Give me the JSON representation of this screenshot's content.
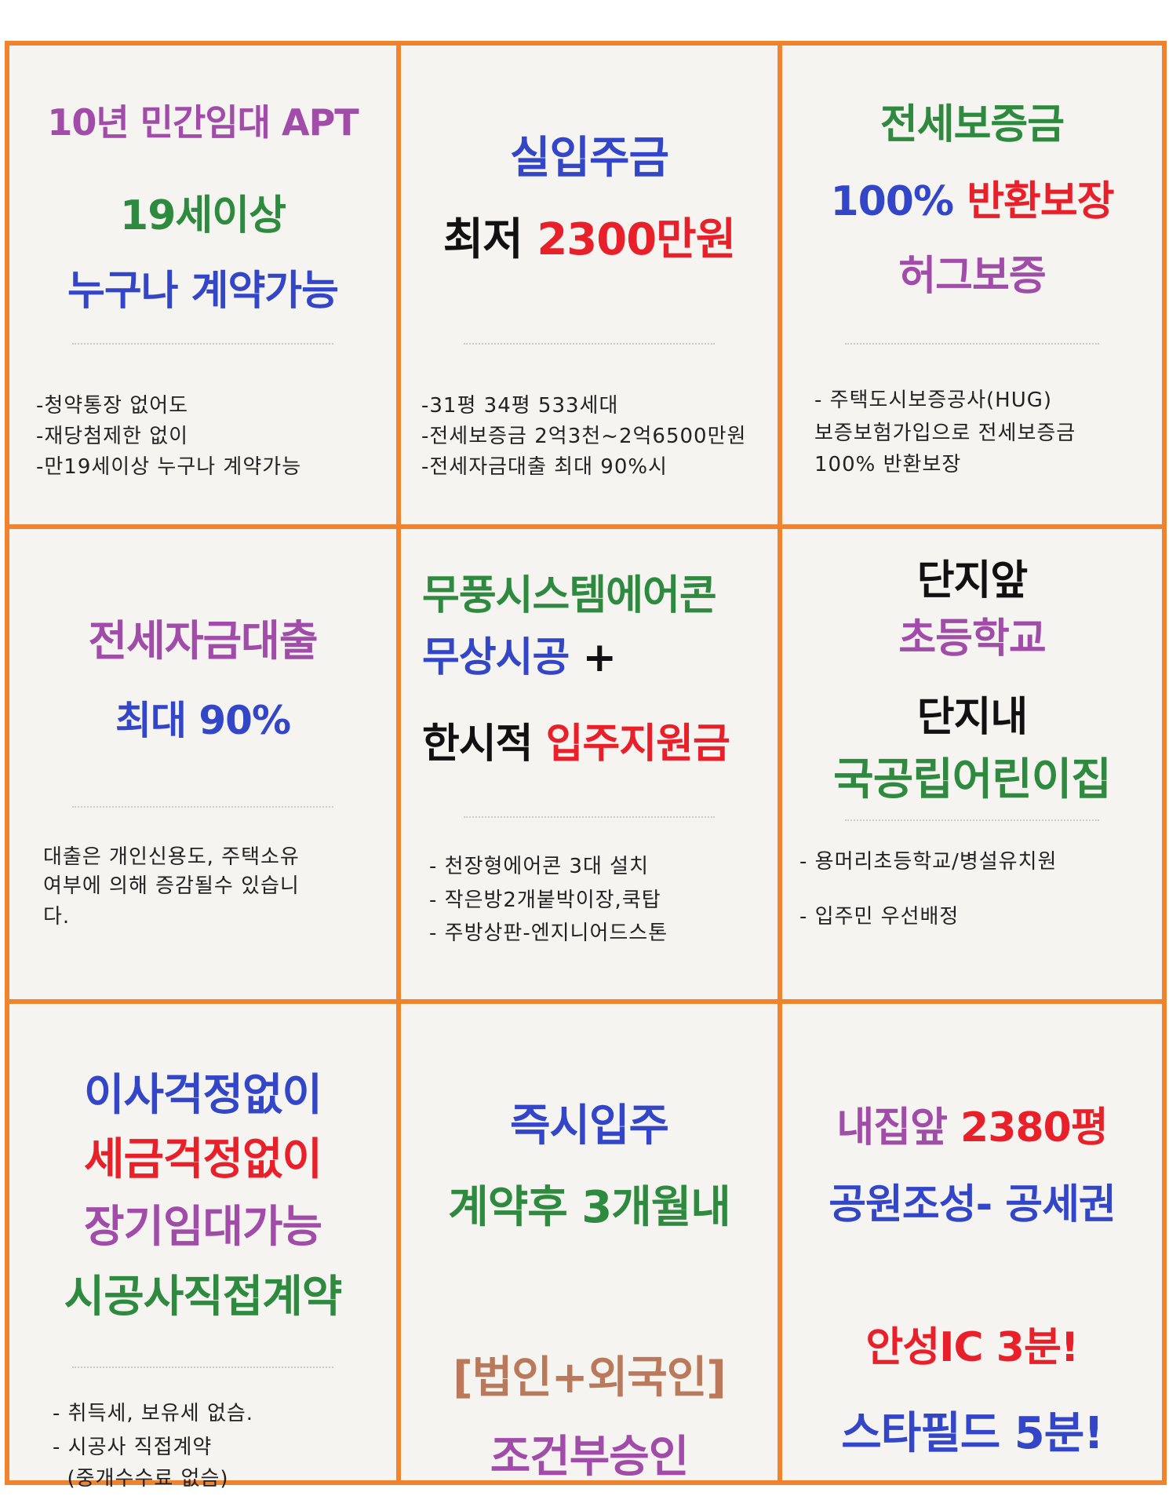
{
  "colors": {
    "border": "#f0832e",
    "background": "#f5f4f1",
    "purple": "#a04ca8",
    "green": "#2e8a3e",
    "blue": "#3446c8",
    "red": "#e8202a",
    "black": "#111111",
    "brown": "#b9795a"
  },
  "cells": [
    {
      "headlines": [
        [
          {
            "text": "10년 민간임대 APT",
            "color": "#a04ca8"
          }
        ],
        [
          {
            "text": "19세이상",
            "color": "#2e8a3e"
          }
        ],
        [
          {
            "text": "누구나 계약가능",
            "color": "#3446c8"
          }
        ]
      ],
      "notes": [
        "-청약통장 없어도",
        "-재당첨제한 없이",
        "-만19세이상 누구나 계약가능"
      ]
    },
    {
      "headlines": [
        [
          {
            "text": "실입주금",
            "color": "#3446c8"
          }
        ],
        [
          {
            "text": "최저 ",
            "color": "#111111"
          },
          {
            "text": "2300만원",
            "color": "#e8202a"
          }
        ]
      ],
      "notes": [
        "-31평 34평 533세대",
        "-전세보증금 2억3천~2억6500만원",
        "-전세자금대출 최대 90%시"
      ]
    },
    {
      "headlines": [
        [
          {
            "text": "전세보증금",
            "color": "#2e8a3e"
          }
        ],
        [
          {
            "text": "100% ",
            "color": "#3446c8"
          },
          {
            "text": "반환보장",
            "color": "#e8202a"
          }
        ],
        [
          {
            "text": "허그보증",
            "color": "#a04ca8"
          }
        ]
      ],
      "notes": [
        "- 주택도시보증공사(HUG)",
        "보증보험가입으로 전세보증금",
        "100% 반환보장"
      ]
    },
    {
      "headlines": [
        [
          {
            "text": "전세자금대출",
            "color": "#a04ca8"
          }
        ],
        [
          {
            "text": "최대 90%",
            "color": "#3446c8"
          }
        ]
      ],
      "notes": [
        "대출은 개인신용도, 주택소유",
        "여부에 의해 증감될수 있습니",
        "다."
      ]
    },
    {
      "headlines": [
        [
          {
            "text": "무풍시스템에어콘",
            "color": "#2e8a3e"
          }
        ],
        [
          {
            "text": "무상시공",
            "color": "#3446c8"
          },
          {
            "text": " +",
            "color": "#111111"
          }
        ],
        [
          {
            "text": "한시적 ",
            "color": "#111111"
          },
          {
            "text": "입주지원금",
            "color": "#e8202a"
          }
        ]
      ],
      "notes": [
        "- 천장형에어콘 3대 설치",
        "- 작은방2개붙박이장,쿡탑",
        "- 주방상판-엔지니어드스톤"
      ]
    },
    {
      "headlines": [
        [
          {
            "text": "단지앞",
            "color": "#111111"
          }
        ],
        [
          {
            "text": "초등학교",
            "color": "#a04ca8"
          }
        ],
        [
          {
            "text": "단지내",
            "color": "#111111"
          }
        ],
        [
          {
            "text": "국공립어린이집",
            "color": "#2e8a3e"
          }
        ]
      ],
      "notes": [
        "- 용머리초등학교/병설유치원",
        "- 입주민 우선배정"
      ]
    },
    {
      "headlines": [
        [
          {
            "text": "이사걱정없이",
            "color": "#3446c8"
          }
        ],
        [
          {
            "text": "세금걱정없이",
            "color": "#e8202a"
          }
        ],
        [
          {
            "text": "장기임대가능",
            "color": "#a04ca8"
          }
        ],
        [
          {
            "text": "시공사직접계약",
            "color": "#2e8a3e"
          }
        ]
      ],
      "notes": [
        "- 취득세, 보유세 없슴.",
        "- 시공사 직접계약",
        "  (중개수수료 없슴)"
      ]
    },
    {
      "headlines": [
        [
          {
            "text": "즉시입주",
            "color": "#3446c8"
          }
        ],
        [
          {
            "text": "계약후 3개월내",
            "color": "#2e8a3e"
          }
        ],
        [
          {
            "text": "[법인+외국인]",
            "color": "#b9795a"
          }
        ],
        [
          {
            "text": "조건부승인",
            "color": "#a04ca8"
          }
        ]
      ],
      "notes": []
    },
    {
      "headlines": [
        [
          {
            "text": "내집앞 ",
            "color": "#a04ca8"
          },
          {
            "text": "2380평",
            "color": "#e8202a"
          }
        ],
        [
          {
            "text": "공원조성- 공세권",
            "color": "#3446c8"
          }
        ],
        [
          {
            "text": "안성IC 3분!",
            "color": "#e8202a"
          }
        ],
        [
          {
            "text": "스타필드 5분!",
            "color": "#3446c8"
          }
        ]
      ],
      "notes": []
    }
  ]
}
